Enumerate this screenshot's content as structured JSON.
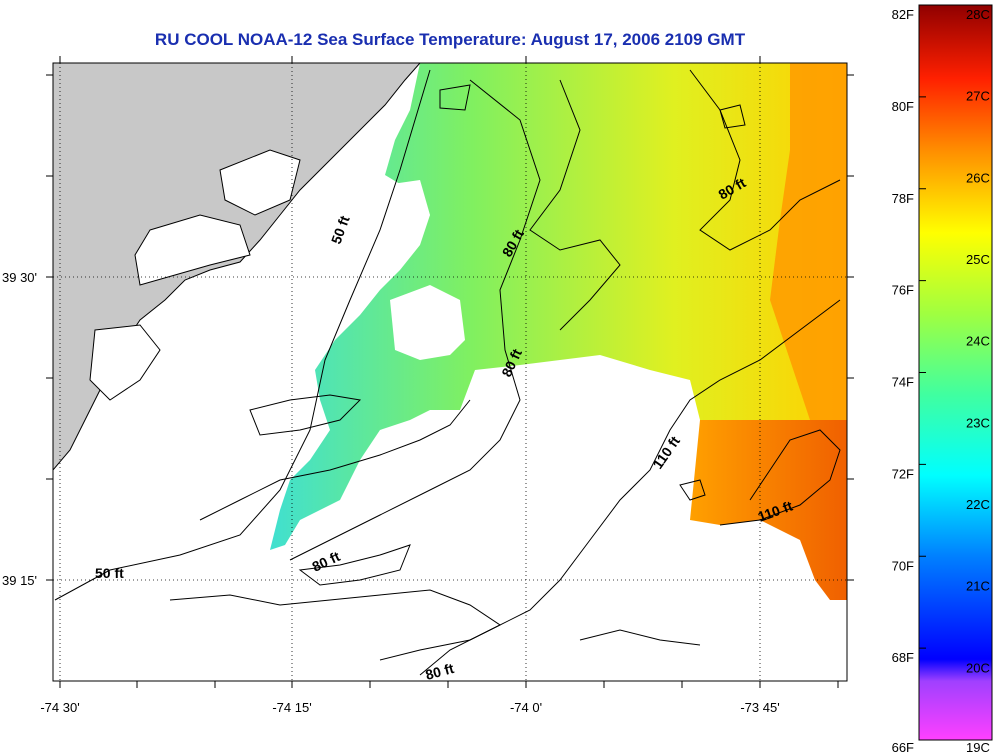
{
  "title": "RU COOL  NOAA-12  Sea Surface Temperature:  August 17, 2006 2109 GMT",
  "map": {
    "x_ticks": [
      "-74 30'",
      "-74 15'",
      "-74 0'",
      "-73 45'"
    ],
    "y_ticks": [
      "39 30'",
      "39 15'"
    ],
    "land_color": "#c8c8c8",
    "no_data_color": "#ffffff",
    "contour_labels": [
      "50 ft",
      "80 ft",
      "80 ft",
      "80 ft",
      "110 ft",
      "110 ft",
      "80 ft",
      "50 ft",
      "80 ft"
    ]
  },
  "colorbar": {
    "fahrenheit_labels": [
      "82F",
      "80F",
      "78F",
      "76F",
      "74F",
      "72F",
      "70F",
      "68F",
      "66F"
    ],
    "celsius_labels": [
      "28C",
      "27C",
      "26C",
      "25C",
      "24C",
      "23C",
      "22C",
      "21C",
      "20C",
      "19C"
    ],
    "colors": [
      "#ff40ff",
      "#8030ff",
      "#0000ff",
      "#0080ff",
      "#00e0ff",
      "#40ffc0",
      "#a0ff40",
      "#ffff00",
      "#ff9000",
      "#ff2000",
      "#900000"
    ]
  }
}
